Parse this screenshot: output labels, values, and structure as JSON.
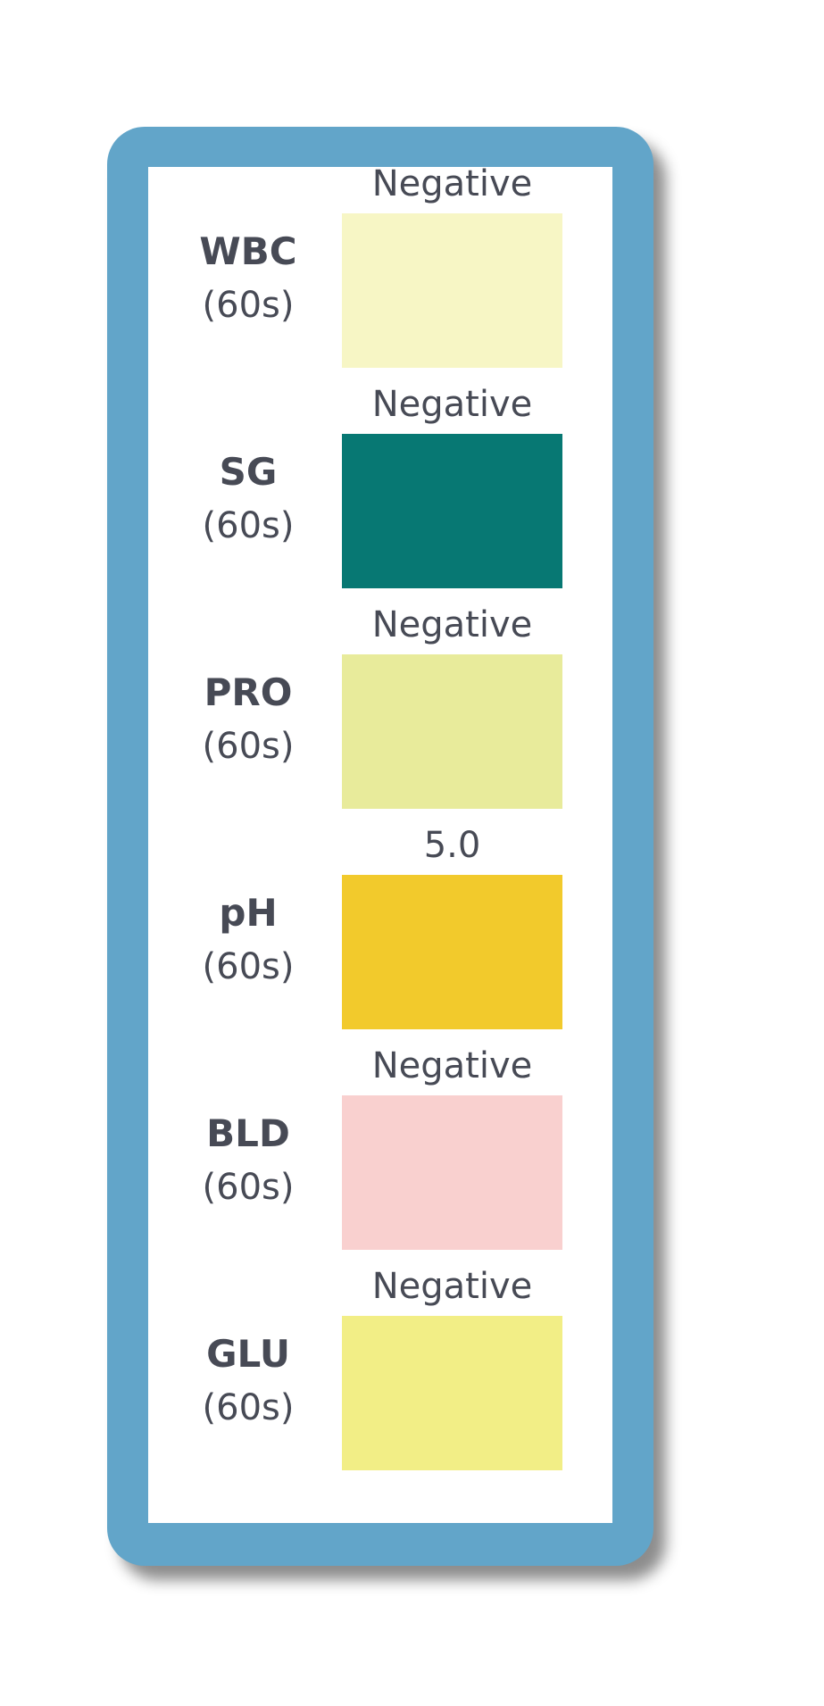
{
  "strip": {
    "pads": [
      {
        "name": "WBC",
        "time": "(60s)",
        "result": "Negative",
        "color": "#f7f6c5"
      },
      {
        "name": "SG",
        "time": "(60s)",
        "result": "Negative",
        "color": "#077873"
      },
      {
        "name": "PRO",
        "time": "(60s)",
        "result": "Negative",
        "color": "#e8eb9b"
      },
      {
        "name": "pH",
        "time": "(60s)",
        "result": "5.0",
        "color": "#f2ca2c"
      },
      {
        "name": "BLD",
        "time": "(60s)",
        "result": "Negative",
        "color": "#f9d0cf"
      },
      {
        "name": "GLU",
        "time": "(60s)",
        "result": "Negative",
        "color": "#f2ee86"
      }
    ]
  }
}
